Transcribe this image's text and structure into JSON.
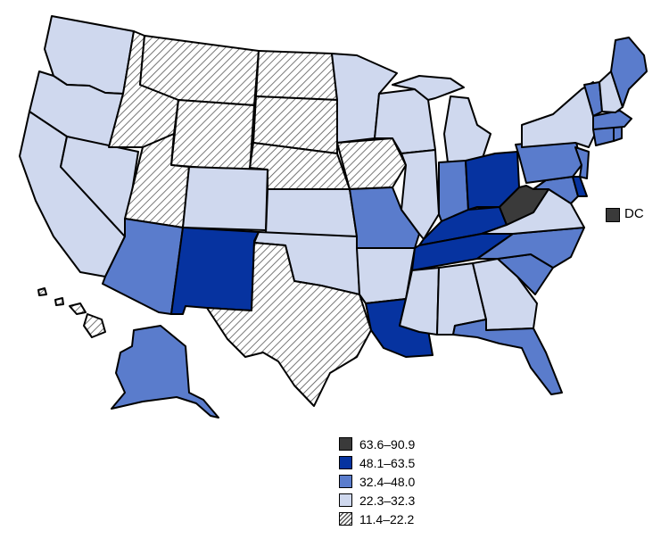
{
  "colors": {
    "c1": "#3a3a3a",
    "c2": "#0633a0",
    "c3": "#5a7ccc",
    "c4": "#cfd8ee",
    "c5": "hatch"
  },
  "dc": {
    "label": "DC",
    "category": "c1"
  },
  "legend": [
    {
      "label": "63.6–90.9",
      "category": "c1"
    },
    {
      "label": "48.1–63.5",
      "category": "c2"
    },
    {
      "label": "32.4–48.0",
      "category": "c3"
    },
    {
      "label": "22.3–32.3",
      "category": "c4"
    },
    {
      "label": "11.4–22.2",
      "category": "c5"
    }
  ],
  "states": {
    "WA": "c4",
    "OR": "c4",
    "CA": "c4",
    "NV": "c4",
    "ID": "c5",
    "MT": "c5",
    "WY": "c5",
    "UT": "c5",
    "CO": "c4",
    "AZ": "c3",
    "NM": "c2",
    "ND": "c5",
    "SD": "c5",
    "NE": "c5",
    "KS": "c4",
    "OK": "c4",
    "TX": "c5",
    "MN": "c4",
    "IA": "c5",
    "MO": "c3",
    "AR": "c4",
    "LA": "c2",
    "WI": "c4",
    "IL": "c4",
    "MI": "c4",
    "IN": "c3",
    "OH": "c2",
    "KY": "c2",
    "TN": "c2",
    "MS": "c4",
    "AL": "c4",
    "GA": "c4",
    "FL": "c3",
    "SC": "c3",
    "NC": "c3",
    "VA": "c4",
    "WV": "c1",
    "MD": "c3",
    "DE": "c2",
    "PA": "c3",
    "NJ": "c3",
    "NY": "c4",
    "CT": "c3",
    "RI": "c3",
    "MA": "c3",
    "VT": "c3",
    "NH": "c4",
    "ME": "c3",
    "AK": "c3",
    "HI": "c5"
  }
}
